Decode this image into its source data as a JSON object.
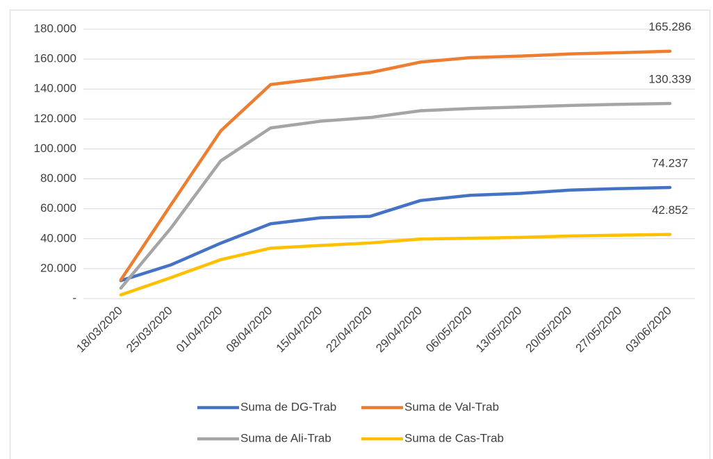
{
  "chart_data": {
    "type": "line",
    "categories": [
      "18/03/2020",
      "25/03/2020",
      "01/04/2020",
      "08/04/2020",
      "15/04/2020",
      "22/04/2020",
      "29/04/2020",
      "06/05/2020",
      "13/05/2020",
      "20/05/2020",
      "27/05/2020",
      "03/06/2020"
    ],
    "series": [
      {
        "name": "Suma de DG-Trab",
        "color": "#4472c4",
        "values": [
          12000,
          22500,
          37000,
          50000,
          54000,
          55000,
          65500,
          69000,
          70300,
          72500,
          73500,
          74237
        ],
        "value_labels": [
          null,
          null,
          null,
          null,
          null,
          null,
          null,
          null,
          null,
          null,
          null,
          "74.237"
        ]
      },
      {
        "name": "Suma de Val-Trab",
        "color": "#ed7d31",
        "values": [
          12500,
          62500,
          112000,
          143000,
          147000,
          151000,
          158000,
          161000,
          162000,
          163500,
          164300,
          165286
        ],
        "value_labels": [
          null,
          null,
          null,
          null,
          null,
          null,
          null,
          null,
          null,
          null,
          null,
          "165.286"
        ]
      },
      {
        "name": "Suma de Ali-Trab",
        "color": "#a5a5a5",
        "values": [
          7000,
          47000,
          92000,
          114000,
          118500,
          121000,
          125500,
          127000,
          128000,
          129000,
          129800,
          130339
        ],
        "value_labels": [
          null,
          null,
          null,
          null,
          null,
          null,
          null,
          null,
          null,
          null,
          null,
          "130.339"
        ]
      },
      {
        "name": "Suma de Cas-Trab",
        "color": "#ffc000",
        "values": [
          2500,
          14000,
          26000,
          33700,
          35500,
          37200,
          39800,
          40300,
          40900,
          41800,
          42400,
          42852
        ],
        "value_labels": [
          null,
          null,
          null,
          null,
          null,
          null,
          null,
          null,
          null,
          null,
          null,
          "42.852"
        ]
      }
    ],
    "ylim": [
      0,
      180000
    ],
    "yticks": [
      {
        "value": 0,
        "label": "-"
      },
      {
        "value": 20000,
        "label": "20.000"
      },
      {
        "value": 40000,
        "label": "40.000"
      },
      {
        "value": 60000,
        "label": "60.000"
      },
      {
        "value": 80000,
        "label": "80.000"
      },
      {
        "value": 100000,
        "label": "100.000"
      },
      {
        "value": 120000,
        "label": "120.000"
      },
      {
        "value": 140000,
        "label": "140.000"
      },
      {
        "value": 160000,
        "label": "160.000"
      },
      {
        "value": 180000,
        "label": "180.000"
      }
    ],
    "grid": true,
    "legend": "bottom"
  }
}
